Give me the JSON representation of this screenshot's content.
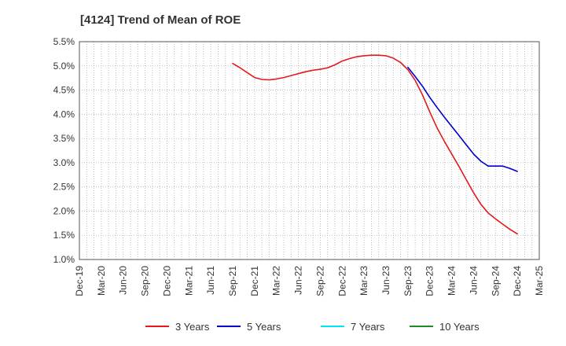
{
  "chart_data": {
    "type": "line",
    "title": "[4124]  Trend of Mean of ROE",
    "xlabel": "",
    "ylabel": "",
    "x_ticks": [
      "Dec-19",
      "Mar-20",
      "Jun-20",
      "Sep-20",
      "Dec-20",
      "Mar-21",
      "Jun-21",
      "Sep-21",
      "Dec-21",
      "Mar-22",
      "Jun-22",
      "Sep-22",
      "Dec-22",
      "Mar-23",
      "Jun-23",
      "Sep-23",
      "Dec-23",
      "Mar-24",
      "Jun-24",
      "Sep-24",
      "Dec-24",
      "Mar-25"
    ],
    "y_ticks": [
      "1.0%",
      "1.5%",
      "2.0%",
      "2.5%",
      "3.0%",
      "3.5%",
      "4.0%",
      "4.5%",
      "5.0%",
      "5.5%"
    ],
    "ylim": [
      1.0,
      5.5
    ],
    "y_unit": "%",
    "grid": true,
    "legend_position": "bottom",
    "x_axis_kind": "monthly",
    "series": [
      {
        "name": "3 Years",
        "color": "#e31a1c",
        "x": [
          "Sep-21",
          "Oct-21",
          "Nov-21",
          "Dec-21",
          "Jan-22",
          "Feb-22",
          "Mar-22",
          "Apr-22",
          "May-22",
          "Jun-22",
          "Jul-22",
          "Aug-22",
          "Sep-22",
          "Oct-22",
          "Nov-22",
          "Dec-22",
          "Jan-23",
          "Feb-23",
          "Mar-23",
          "Apr-23",
          "May-23",
          "Jun-23",
          "Jul-23",
          "Aug-23",
          "Sep-23",
          "Oct-23",
          "Nov-23",
          "Dec-23",
          "Jan-24",
          "Feb-24",
          "Mar-24",
          "Apr-24",
          "May-24",
          "Jun-24",
          "Jul-24",
          "Aug-24",
          "Sep-24",
          "Oct-24",
          "Nov-24",
          "Dec-24"
        ],
        "values": [
          5.05,
          4.96,
          4.86,
          4.76,
          4.72,
          4.71,
          4.73,
          4.76,
          4.8,
          4.84,
          4.88,
          4.91,
          4.93,
          4.96,
          5.02,
          5.1,
          5.15,
          5.19,
          5.21,
          5.22,
          5.22,
          5.21,
          5.16,
          5.07,
          4.92,
          4.7,
          4.4,
          4.05,
          3.72,
          3.44,
          3.18,
          2.92,
          2.65,
          2.38,
          2.14,
          1.96,
          1.84,
          1.73,
          1.62,
          1.53
        ]
      },
      {
        "name": "5 Years",
        "color": "#0000cc",
        "x": [
          "Sep-23",
          "Oct-23",
          "Nov-23",
          "Dec-23",
          "Jan-24",
          "Feb-24",
          "Mar-24",
          "Apr-24",
          "May-24",
          "Jun-24",
          "Jul-24",
          "Aug-24",
          "Sep-24",
          "Oct-24",
          "Nov-24",
          "Dec-24"
        ],
        "values": [
          4.97,
          4.78,
          4.58,
          4.35,
          4.14,
          3.94,
          3.75,
          3.56,
          3.37,
          3.18,
          3.03,
          2.93,
          2.93,
          2.93,
          2.88,
          2.82
        ]
      },
      {
        "name": "7 Years",
        "color": "#00e5ee",
        "x": [],
        "values": []
      },
      {
        "name": "10 Years",
        "color": "#228b22",
        "x": [],
        "values": []
      }
    ]
  }
}
